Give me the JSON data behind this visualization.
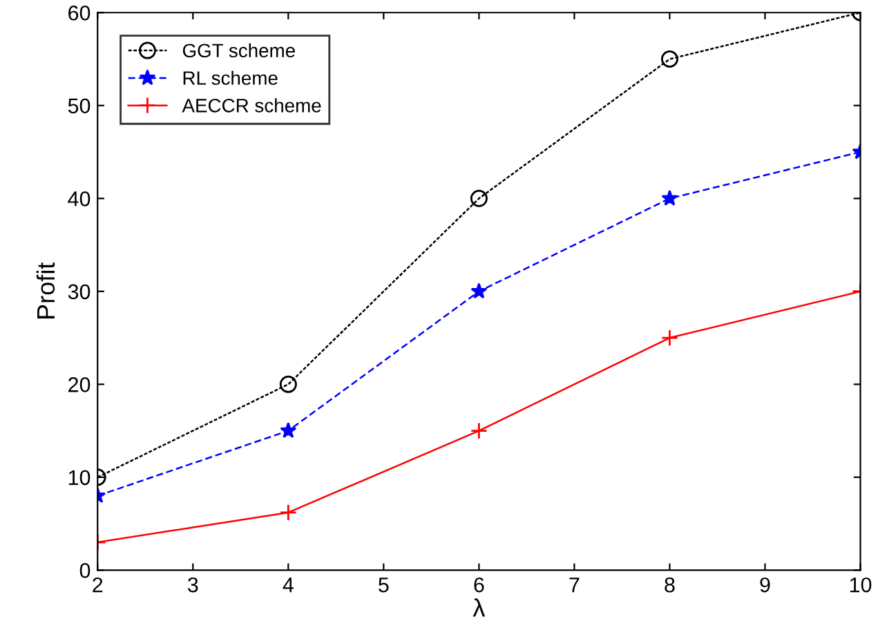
{
  "chart_data": {
    "type": "line",
    "xlabel": "λ",
    "ylabel": "Profit",
    "x": [
      2,
      4,
      6,
      8,
      10
    ],
    "series": [
      {
        "name": "GGT scheme",
        "color": "#000000",
        "values": [
          10,
          20,
          40,
          55,
          60
        ],
        "marker": "circle",
        "line_style": "dotted"
      },
      {
        "name": "RL scheme",
        "color": "#0000ff",
        "values": [
          8,
          15,
          30,
          40,
          45
        ],
        "marker": "star",
        "line_style": "dashed"
      },
      {
        "name": "AECCR scheme",
        "color": "#ff0000",
        "values": [
          3,
          6.2,
          15,
          25,
          30
        ],
        "marker": "cross",
        "line_style": "solid"
      }
    ],
    "xlim": [
      2,
      10
    ],
    "xticks": [
      2,
      3,
      4,
      5,
      6,
      7,
      8,
      9,
      10
    ],
    "ylim": [
      0,
      60
    ],
    "yticks": [
      0,
      10,
      20,
      30,
      40,
      50,
      60
    ],
    "grid": false,
    "legend": "top left"
  }
}
